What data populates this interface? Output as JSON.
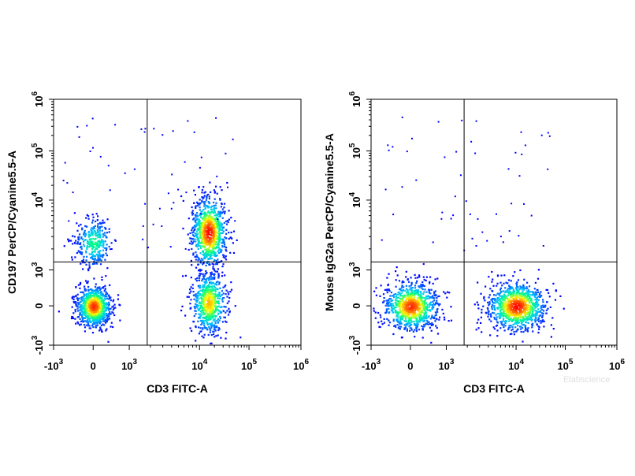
{
  "watermark": "Elabscience",
  "chart_data": [
    {
      "type": "scatter",
      "subtype": "flow-cytometry-density-dot-plot",
      "xlabel": "CD3 FITC-A",
      "ylabel": "CD197 PerCP/Cyanine5.5-A",
      "x_scale": "biexponential",
      "y_scale": "biexponential",
      "x_ticks": [
        {
          "value": -1000,
          "label": "-10",
          "exp": "3"
        },
        {
          "value": 0,
          "label": "0",
          "exp": ""
        },
        {
          "value": 1000,
          "label": "10",
          "exp": "3"
        },
        {
          "value": 10000,
          "label": "10",
          "exp": "4"
        },
        {
          "value": 100000,
          "label": "10",
          "exp": "5"
        },
        {
          "value": 1000000,
          "label": "10",
          "exp": "6"
        }
      ],
      "y_ticks": [
        {
          "value": -1000,
          "label": "-10",
          "exp": "3"
        },
        {
          "value": 0,
          "label": "0",
          "exp": ""
        },
        {
          "value": 1000,
          "label": "10",
          "exp": "3"
        },
        {
          "value": 10000,
          "label": "10",
          "exp": "4"
        },
        {
          "value": 100000,
          "label": "10",
          "exp": "5"
        },
        {
          "value": 1000000,
          "label": "10",
          "exp": "6"
        }
      ],
      "xlim": [
        -1000,
        1000000
      ],
      "ylim": [
        -1000,
        1000000
      ],
      "quadrant_gate": {
        "x": 1800,
        "y": 1300
      },
      "populations": [
        {
          "x": 0,
          "y": 0,
          "note": "CD3- CD197-"
        },
        {
          "x": 0,
          "y": 2500,
          "note": "CD3- CD197+"
        },
        {
          "x": 15000,
          "y": 3500,
          "note": "CD3+ CD197+"
        },
        {
          "x": 15000,
          "y": 100,
          "note": "CD3+ CD197-"
        }
      ],
      "density_colormap": [
        "#0000ff",
        "#00c8ff",
        "#00ff80",
        "#ffff00",
        "#ff8000",
        "#ff0000"
      ]
    },
    {
      "type": "scatter",
      "subtype": "flow-cytometry-density-dot-plot",
      "xlabel": "CD3 FITC-A",
      "ylabel": "Mouse IgG2a PerCP/Cyanine5.5-A",
      "x_scale": "biexponential",
      "y_scale": "biexponential",
      "x_ticks": [
        {
          "value": -1000,
          "label": "-10",
          "exp": "3"
        },
        {
          "value": 0,
          "label": "0",
          "exp": ""
        },
        {
          "value": 1000,
          "label": "10",
          "exp": "3"
        },
        {
          "value": 10000,
          "label": "10",
          "exp": "4"
        },
        {
          "value": 100000,
          "label": "10",
          "exp": "5"
        },
        {
          "value": 1000000,
          "label": "10",
          "exp": "6"
        }
      ],
      "y_ticks": [
        {
          "value": -1000,
          "label": "-10",
          "exp": "3"
        },
        {
          "value": 0,
          "label": "0",
          "exp": ""
        },
        {
          "value": 1000,
          "label": "10",
          "exp": "3"
        },
        {
          "value": 10000,
          "label": "10",
          "exp": "4"
        },
        {
          "value": 100000,
          "label": "10",
          "exp": "5"
        },
        {
          "value": 1000000,
          "label": "10",
          "exp": "6"
        }
      ],
      "xlim": [
        -1000,
        1000000
      ],
      "ylim": [
        -1000,
        1000000
      ],
      "quadrant_gate": {
        "x": 1800,
        "y": 1300
      },
      "populations": [
        {
          "x": 0,
          "y": 0,
          "note": "CD3- isotype"
        },
        {
          "x": 10000,
          "y": 0,
          "note": "CD3+ isotype"
        }
      ],
      "density_colormap": [
        "#0000ff",
        "#00c8ff",
        "#00ff80",
        "#ffff00",
        "#ff8000",
        "#ff0000"
      ]
    }
  ]
}
